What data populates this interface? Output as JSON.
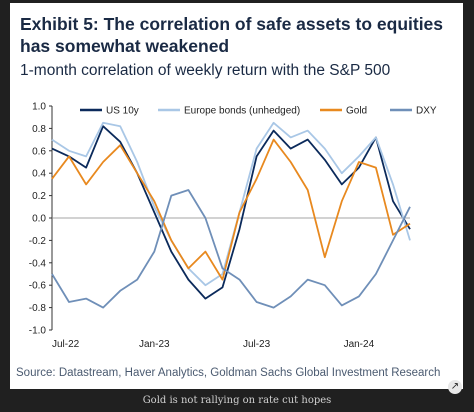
{
  "title": "Exhibit 5: The correlation of safe assets to equities has somewhat weakened",
  "subtitle": "1-month correlation of weekly return with the S&P 500",
  "source": "Source: Datastream, Haver Analytics, Goldman Sachs Global Investment Research",
  "caption": "Gold is not rallying on rate cut hopes",
  "expand_icon": "expand-icon",
  "chart_data": {
    "type": "line",
    "title": "",
    "xlabel": "",
    "ylabel": "",
    "ylim": [
      -1.0,
      1.0
    ],
    "yticks": [
      "1.0",
      "0.8",
      "0.6",
      "0.4",
      "0.2",
      "0.0",
      "-0.2",
      "-0.4",
      "-0.6",
      "-0.8",
      "-1.0"
    ],
    "xticks": [
      "Jul-22",
      "Jan-23",
      "Jul-23",
      "Jan-24"
    ],
    "grid": false,
    "legend_position": "top",
    "x": [
      "2022-07",
      "2022-08",
      "2022-09",
      "2022-10",
      "2022-11",
      "2022-12",
      "2023-01",
      "2023-02",
      "2023-03",
      "2023-04",
      "2023-05",
      "2023-06",
      "2023-07",
      "2023-08",
      "2023-09",
      "2023-10",
      "2023-11",
      "2023-12",
      "2024-01",
      "2024-02",
      "2024-03",
      "2024-04"
    ],
    "series": [
      {
        "name": "US 10y",
        "color": "#0b2a5b",
        "values": [
          0.62,
          0.55,
          0.45,
          0.82,
          0.68,
          0.4,
          0.05,
          -0.3,
          -0.55,
          -0.72,
          -0.62,
          -0.1,
          0.55,
          0.78,
          0.62,
          0.7,
          0.52,
          0.3,
          0.45,
          0.72,
          0.15,
          -0.1
        ]
      },
      {
        "name": "Europe bonds (unhedged)",
        "color": "#a9c7e6",
        "values": [
          0.7,
          0.6,
          0.55,
          0.85,
          0.82,
          0.5,
          0.1,
          -0.2,
          -0.45,
          -0.6,
          -0.5,
          0.05,
          0.62,
          0.85,
          0.72,
          0.78,
          0.62,
          0.4,
          0.55,
          0.72,
          0.3,
          -0.2
        ]
      },
      {
        "name": "Gold",
        "color": "#e8891f",
        "values": [
          0.35,
          0.55,
          0.3,
          0.5,
          0.65,
          0.4,
          0.15,
          -0.2,
          -0.45,
          -0.3,
          -0.55,
          0.05,
          0.35,
          0.7,
          0.5,
          0.25,
          -0.35,
          0.15,
          0.5,
          0.45,
          -0.15,
          -0.05
        ]
      },
      {
        "name": "DXY",
        "color": "#6f8fb8",
        "values": [
          -0.5,
          -0.75,
          -0.72,
          -0.8,
          -0.65,
          -0.55,
          -0.3,
          0.2,
          0.25,
          0.0,
          -0.45,
          -0.55,
          -0.75,
          -0.8,
          -0.7,
          -0.55,
          -0.6,
          -0.78,
          -0.7,
          -0.5,
          -0.2,
          0.1
        ]
      }
    ]
  }
}
